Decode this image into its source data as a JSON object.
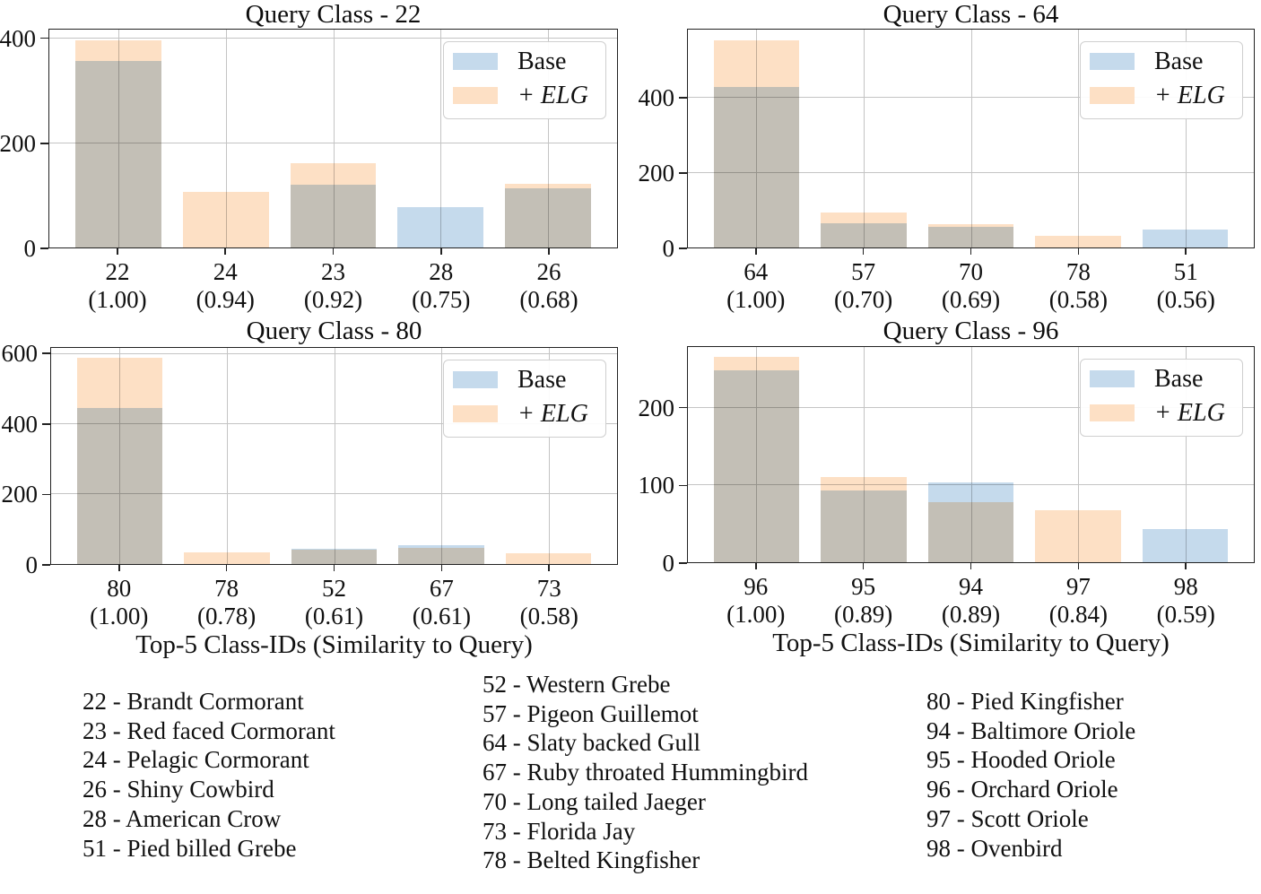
{
  "colors": {
    "base": "#c5daec",
    "elg": "#fde0c5",
    "overlap": "#c8bcb0",
    "grid": "#c4c4c4",
    "frame": "#222222",
    "text": "#111111"
  },
  "legend": {
    "base_label": "Base",
    "elg_label": "+ ELG"
  },
  "x_axis_label": "Top-5 Class-IDs (Similarity to Query)",
  "chart_data": [
    {
      "type": "bar",
      "title": "Query Class - 22",
      "xlabel": "",
      "ylim": [
        0,
        418
      ],
      "yticks": [
        0,
        200,
        400
      ],
      "grid": true,
      "legend_position": "upper right",
      "categories": [
        "22",
        "24",
        "23",
        "28",
        "26"
      ],
      "similarities": [
        "(1.00)",
        "(0.94)",
        "(0.92)",
        "(0.75)",
        "(0.68)"
      ],
      "series": [
        {
          "name": "Base",
          "values": [
            358,
            0,
            120,
            77,
            114
          ]
        },
        {
          "name": "+ ELG",
          "values": [
            398,
            106,
            161,
            0,
            123
          ]
        }
      ]
    },
    {
      "type": "bar",
      "title": "Query Class - 64",
      "xlabel": "",
      "ylim": [
        0,
        583
      ],
      "yticks": [
        0,
        200,
        400
      ],
      "grid": true,
      "legend_position": "upper right",
      "categories": [
        "64",
        "57",
        "70",
        "78",
        "51"
      ],
      "similarities": [
        "(1.00)",
        "(0.70)",
        "(0.69)",
        "(0.58)",
        "(0.56)"
      ],
      "series": [
        {
          "name": "Base",
          "values": [
            430,
            65,
            55,
            0,
            48
          ]
        },
        {
          "name": "+ ELG",
          "values": [
            555,
            93,
            62,
            31,
            0
          ]
        }
      ]
    },
    {
      "type": "bar",
      "title": "Query Class - 80",
      "xlabel": "Top-5 Class-IDs (Similarity to Query)",
      "ylim": [
        0,
        618
      ],
      "yticks": [
        0,
        200,
        400,
        600
      ],
      "grid": true,
      "legend_position": "upper right",
      "categories": [
        "80",
        "78",
        "52",
        "67",
        "73"
      ],
      "similarities": [
        "(1.00)",
        "(0.78)",
        "(0.61)",
        "(0.61)",
        "(0.58)"
      ],
      "series": [
        {
          "name": "Base",
          "values": [
            446,
            0,
            43,
            53,
            0
          ]
        },
        {
          "name": "+ ELG",
          "values": [
            590,
            33,
            42,
            45,
            30
          ]
        }
      ]
    },
    {
      "type": "bar",
      "title": "Query Class - 96",
      "xlabel": "Top-5 Class-IDs (Similarity to Query)",
      "ylim": [
        0,
        279
      ],
      "yticks": [
        0,
        100,
        200
      ],
      "grid": true,
      "legend_position": "upper right",
      "categories": [
        "96",
        "95",
        "94",
        "97",
        "98"
      ],
      "similarities": [
        "(1.00)",
        "(0.89)",
        "(0.89)",
        "(0.84)",
        "(0.59)"
      ],
      "series": [
        {
          "name": "Base",
          "values": [
            249,
            93,
            103,
            0,
            43
          ]
        },
        {
          "name": "+ ELG",
          "values": [
            266,
            110,
            78,
            67,
            0
          ]
        }
      ]
    }
  ],
  "key": {
    "columns": [
      {
        "items": [
          "22 - Brandt Cormorant",
          "23 - Red faced Cormorant",
          "24 - Pelagic Cormorant",
          "26 - Shiny Cowbird",
          "28 - American Crow",
          "51 - Pied billed Grebe"
        ]
      },
      {
        "items": [
          "52 - Western Grebe",
          "57 - Pigeon Guillemot",
          "64 - Slaty backed Gull",
          "67 - Ruby throated Hummingbird",
          "70 - Long tailed Jaeger",
          "73 - Florida Jay",
          "78 - Belted Kingfisher"
        ]
      },
      {
        "items": [
          "80 - Pied Kingfisher",
          "94 - Baltimore Oriole",
          "95 - Hooded Oriole",
          "96 - Orchard Oriole",
          "97 - Scott Oriole",
          "98 - Ovenbird"
        ]
      }
    ]
  }
}
